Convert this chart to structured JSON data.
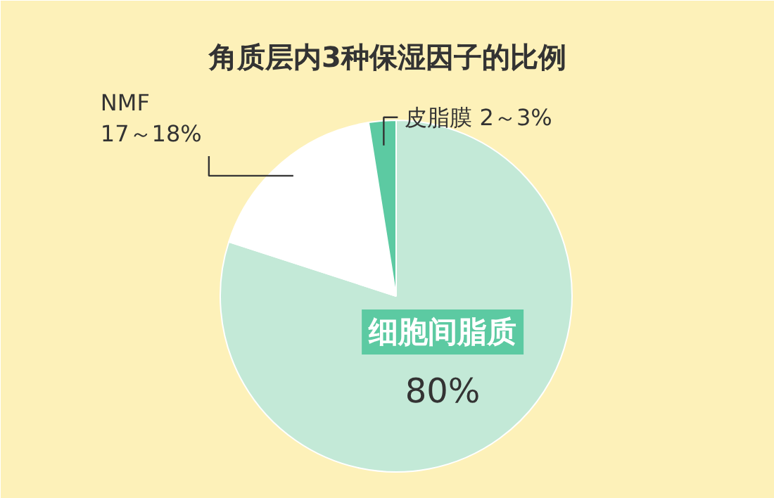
{
  "chart_data": {
    "type": "pie",
    "title": "角质层内3种保湿因子的比例",
    "categories": [
      "细胞间脂质",
      "NMF",
      "皮脂膜"
    ],
    "values": [
      80,
      17.5,
      2.5
    ],
    "value_labels": [
      "80%",
      "17～18%",
      "2～3%"
    ],
    "colors": [
      "#c3e9d7",
      "#ffffff",
      "#5ccaa2"
    ]
  }
}
